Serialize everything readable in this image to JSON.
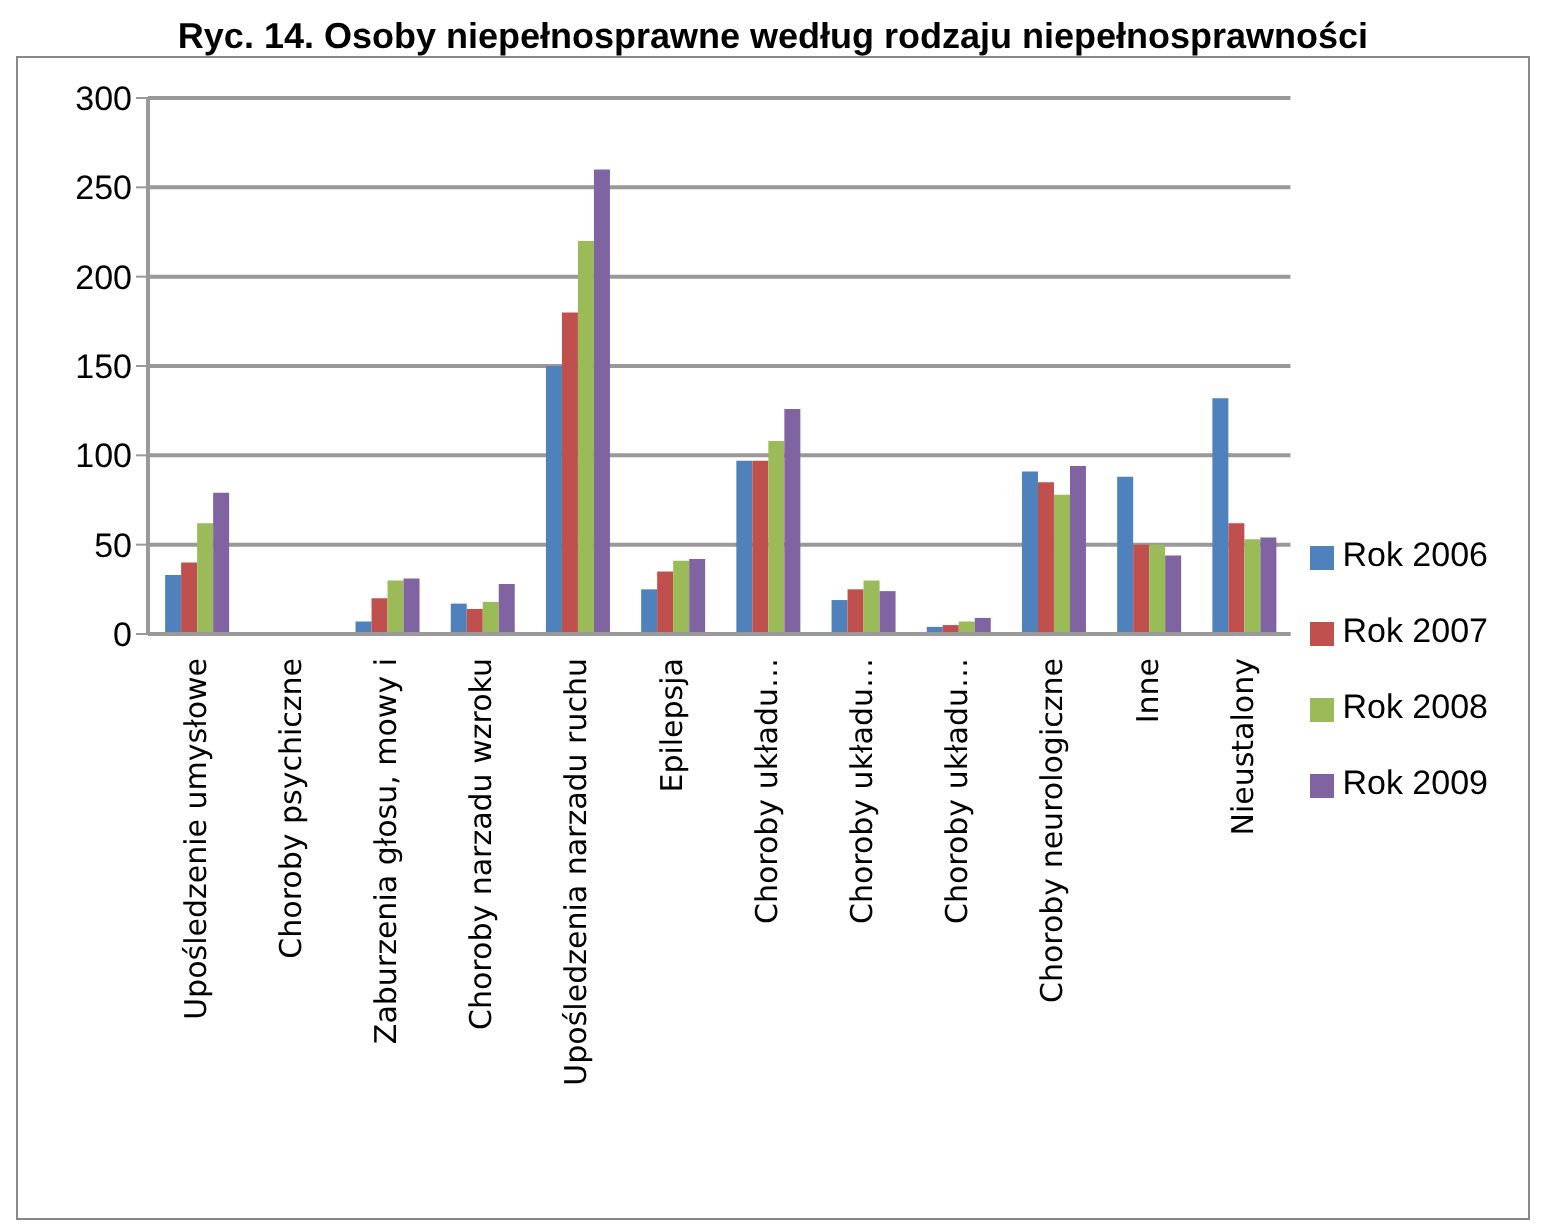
{
  "chart_data": {
    "type": "bar",
    "title": "Ryc. 14. Osoby niepełnosprawne według rodzaju niepełnosprawności",
    "categories": [
      "Upośledzenie umysłowe",
      "Choroby psychiczne",
      "Zaburzenia głosu, mowy i",
      "Choroby narzadu wzroku",
      "Upośledzenia narzadu ruchu",
      "Epilepsja",
      "Choroby układu…",
      "Choroby układu…",
      "Choroby układu…",
      "Choroby neurologiczne",
      "Inne",
      "Nieustalony"
    ],
    "series": [
      {
        "name": "Rok 2006",
        "color": "#4f81bd",
        "values": [
          33,
          0,
          7,
          17,
          150,
          25,
          97,
          19,
          4,
          91,
          88,
          132
        ]
      },
      {
        "name": "Rok 2007",
        "color": "#c0504d",
        "values": [
          40,
          0,
          20,
          14,
          180,
          35,
          97,
          25,
          5,
          85,
          50,
          62
        ]
      },
      {
        "name": "Rok 2008",
        "color": "#9bbb59",
        "values": [
          62,
          0,
          30,
          18,
          220,
          41,
          108,
          30,
          7,
          78,
          50,
          53
        ]
      },
      {
        "name": "Rok 2009",
        "color": "#8064a2",
        "values": [
          79,
          0,
          31,
          28,
          260,
          42,
          126,
          24,
          9,
          94,
          44,
          54
        ]
      }
    ],
    "ylim": [
      0,
      300
    ],
    "yticks": [
      0,
      50,
      100,
      150,
      200,
      250,
      300
    ],
    "grid": "y",
    "legend": "right"
  }
}
